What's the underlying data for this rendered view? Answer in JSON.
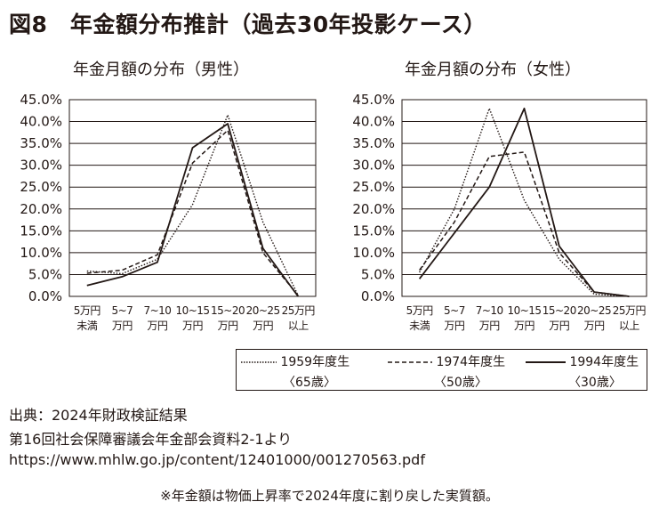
{
  "title": "図8　年金額分布推計（過去30年投影ケース）",
  "source": {
    "line1": "出典：2024年財政検証結果",
    "line2": "第16回社会保障審議会年金部会資料2-1より",
    "line3": "https://www.mhlw.go.jp/content/12401000/001270563.pdf"
  },
  "note": "※年金額は物価上昇率で2024年度に割り戻した実質額。",
  "legend": [
    {
      "name": "1959年度生",
      "age": "〈65歳〉",
      "style": "dotted"
    },
    {
      "name": "1974年度生",
      "age": "〈50歳〉",
      "style": "dashed"
    },
    {
      "name": "1994年度生",
      "age": "〈30歳〉",
      "style": "solid"
    }
  ],
  "chart_data": [
    {
      "type": "line",
      "title": "年金月額の分布（男性）",
      "categories": [
        [
          "5万円",
          "未満"
        ],
        [
          "5~7",
          "万円"
        ],
        [
          "7~10",
          "万円"
        ],
        [
          "10~15",
          "万円"
        ],
        [
          "15~20",
          "万円"
        ],
        [
          "20~25",
          "万円"
        ],
        [
          "25万円",
          "以上"
        ]
      ],
      "yticks": [
        "0.0%",
        "5.0%",
        "10.0%",
        "15.0%",
        "20.0%",
        "25.0%",
        "30.0%",
        "35.0%",
        "40.0%",
        "45.0%"
      ],
      "ylim": [
        0,
        45
      ],
      "grid": true,
      "series": [
        {
          "name": "1959年度生",
          "values": [
            5.8,
            5.2,
            8.5,
            21.0,
            41.5,
            17.0,
            0.2
          ]
        },
        {
          "name": "1974年度生",
          "values": [
            5.3,
            6.0,
            9.5,
            30.5,
            38.0,
            10.0,
            0.2
          ]
        },
        {
          "name": "1994年度生",
          "values": [
            2.5,
            4.5,
            7.8,
            34.0,
            39.5,
            11.0,
            0.0
          ]
        }
      ]
    },
    {
      "type": "line",
      "title": "年金月額の分布（女性）",
      "categories": [
        [
          "5万円",
          "未満"
        ],
        [
          "5~7",
          "万円"
        ],
        [
          "7~10",
          "万円"
        ],
        [
          "10~15",
          "万円"
        ],
        [
          "15~20",
          "万円"
        ],
        [
          "20~25",
          "万円"
        ],
        [
          "25万円",
          "以上"
        ]
      ],
      "yticks": [
        "0.0%",
        "5.0%",
        "10.0%",
        "15.0%",
        "20.0%",
        "25.0%",
        "30.0%",
        "35.0%",
        "40.0%",
        "45.0%"
      ],
      "ylim": [
        0,
        45
      ],
      "grid": true,
      "series": [
        {
          "name": "1959年度生",
          "values": [
            5.5,
            20.0,
            43.0,
            22.0,
            8.5,
            0.5,
            0.0
          ]
        },
        {
          "name": "1974年度生",
          "values": [
            6.0,
            17.0,
            32.0,
            33.0,
            10.0,
            1.0,
            0.0
          ]
        },
        {
          "name": "1994年度生",
          "values": [
            4.0,
            14.5,
            25.0,
            43.0,
            11.5,
            1.0,
            0.0
          ]
        }
      ]
    }
  ]
}
